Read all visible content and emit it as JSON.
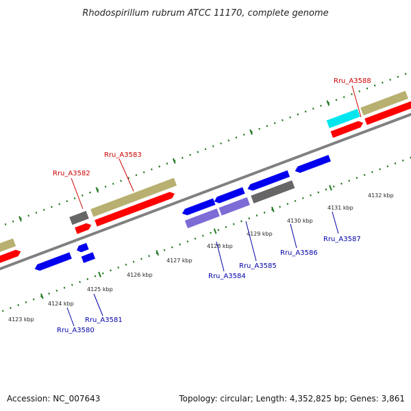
{
  "title": "Rhodospirillum rubrum ATCC 11170, complete genome",
  "footer": {
    "accession": "Accession: NC_007643",
    "summary": "Topology: circular; Length: 4,352,825 bp; Genes: 3,861"
  },
  "colors": {
    "backbone": "#808080",
    "tick": "#1f7a1f",
    "red_gene": "#ff0000",
    "blue_gene": "#0000ee",
    "olive_gene": "#b8b070",
    "gray_gene": "#666666",
    "purple_gene": "#7d6bd6",
    "cyan_gene": "#00e5ee"
  },
  "kbp_labels": [
    "4123 kbp",
    "4124 kbp",
    "4125 kbp",
    "4126 kbp",
    "4127 kbp",
    "4128 kbp",
    "4129 kbp",
    "4130 kbp",
    "4131 kbp",
    "4132 kbp"
  ],
  "gene_labels_top": [
    "Rru_A3582",
    "Rru_A3583",
    "Rru_A3588"
  ],
  "gene_labels_bottom": [
    "Rru_A3580",
    "Rru_A3581",
    "Rru_A3584",
    "Rru_A3585",
    "Rru_A3586",
    "Rru_A3587"
  ]
}
